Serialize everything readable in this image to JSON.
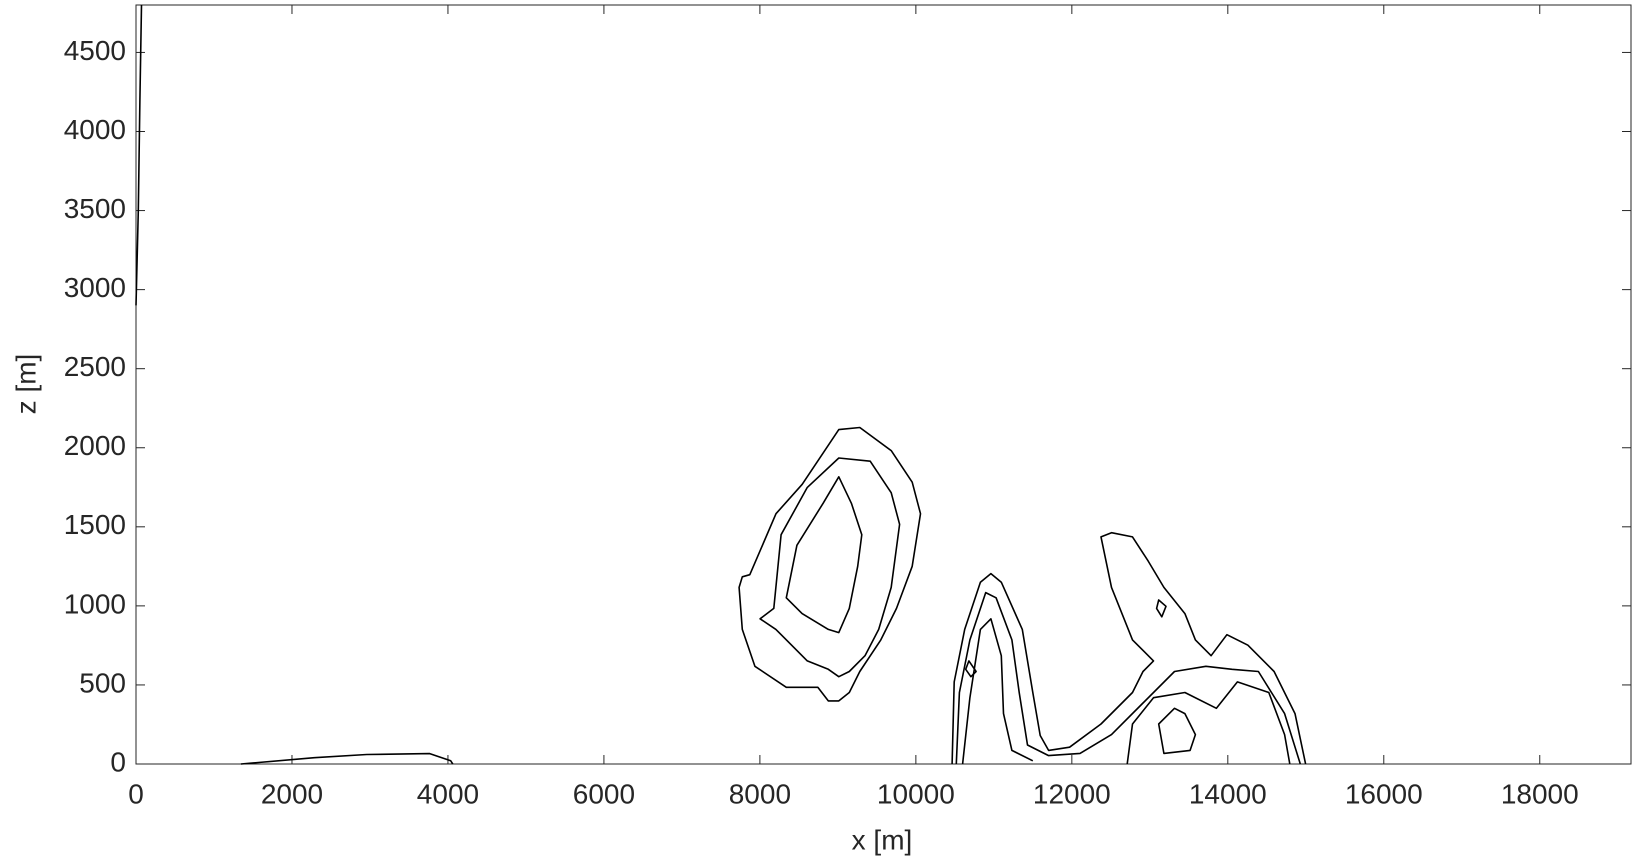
{
  "chart_data": {
    "type": "contour",
    "xlabel": "x [m]",
    "ylabel": "z [m]",
    "xlim": [
      0,
      19170
    ],
    "ylim": [
      0,
      4800
    ],
    "xticks": [
      0,
      2000,
      4000,
      6000,
      8000,
      10000,
      12000,
      14000,
      16000,
      18000
    ],
    "yticks": [
      0,
      500,
      1000,
      1500,
      2000,
      2500,
      3000,
      3500,
      4000,
      4500
    ],
    "grid": false,
    "color": "#000000",
    "series": [
      {
        "closed": true,
        "x": [
          7775,
          7870,
          8206,
          8543,
          9012,
          9281,
          9684,
          9953,
          10060,
          9953,
          9752,
          9550,
          9281,
          9146,
          9012,
          8877,
          8743,
          8339,
          7936,
          7775,
          7734
        ],
        "values": [
          1184,
          1197,
          1583,
          1769,
          2115,
          2128,
          1982,
          1782,
          1583,
          1250,
          984,
          785,
          585,
          452,
          399,
          399,
          485,
          485,
          618,
          851,
          1117
        ]
      },
      {
        "closed": true,
        "x": [
          8178,
          8272,
          8608,
          9012,
          9415,
          9684,
          9792,
          9684,
          9523,
          9348,
          9146,
          9012,
          8877,
          8608,
          8205,
          8003
        ],
        "values": [
          984,
          1450,
          1749,
          1935,
          1915,
          1716,
          1516,
          1117,
          851,
          685,
          585,
          552,
          599,
          652,
          851,
          918
        ]
      },
      {
        "closed": true,
        "x": [
          8339,
          8474,
          8810,
          9012,
          9173,
          9307,
          9254,
          9146,
          9012,
          8877,
          8541
        ],
        "values": [
          1051,
          1383,
          1649,
          1816,
          1649,
          1450,
          1250,
          984,
          831,
          851,
          951
        ]
      },
      {
        "closed": false,
        "x": [
          10464,
          10491,
          10626,
          10827,
          10962,
          11096,
          11365,
          11500,
          11594,
          11702,
          11971,
          12374,
          12778,
          12912,
          13047,
          12778,
          12509,
          12374,
          12509,
          12778,
          12979,
          13181,
          13450,
          13585,
          13786,
          13988,
          14257,
          14593,
          14862,
          14997
        ],
        "values": [
          0,
          519,
          851,
          1150,
          1204,
          1150,
          851,
          452,
          180,
          86,
          106,
          253,
          452,
          585,
          652,
          785,
          1117,
          1436,
          1463,
          1436,
          1283,
          1117,
          951,
          785,
          685,
          818,
          751,
          585,
          319,
          0
        ]
      },
      {
        "closed": false,
        "x": [
          10518,
          10558,
          10693,
          10895,
          11029,
          11231,
          11325,
          11432,
          11702,
          12105,
          12509,
          12912,
          13316,
          13719,
          14055,
          14392,
          14728,
          14930
        ],
        "values": [
          0,
          452,
          785,
          1084,
          1051,
          785,
          452,
          120,
          53,
          67,
          186,
          386,
          585,
          618,
          599,
          585,
          319,
          0
        ]
      },
      {
        "closed": false,
        "x": [
          10599,
          10693,
          10827,
          10962,
          11096,
          11124,
          11231,
          11500
        ],
        "values": [
          0,
          419,
          851,
          918,
          685,
          319,
          86,
          20
        ]
      },
      {
        "closed": false,
        "x": [
          12710,
          12778,
          13047,
          13450,
          13854,
          14123,
          14526,
          14728,
          14795
        ],
        "values": [
          0,
          253,
          419,
          452,
          352,
          519,
          452,
          186,
          0
        ]
      },
      {
        "closed": true,
        "x": [
          13114,
          13181,
          13517,
          13585,
          13450,
          13316
        ],
        "values": [
          253,
          67,
          86,
          186,
          319,
          352
        ]
      },
      {
        "closed": true,
        "x": [
          13114,
          13208,
          13154,
          13087
        ],
        "values": [
          1037,
          997,
          931,
          984
        ]
      },
      {
        "closed": true,
        "x": [
          10680,
          10773,
          10706,
          10639
        ],
        "values": [
          652,
          585,
          552,
          599
        ]
      },
      {
        "closed": false,
        "x": [
          1345,
          2286,
          2959,
          3766,
          4035,
          4062
        ],
        "values": [
          0,
          40,
          60,
          66,
          20,
          0
        ]
      },
      {
        "closed": false,
        "x": [
          0,
          30,
          50,
          70
        ],
        "values": [
          2900,
          3500,
          4200,
          4800
        ]
      }
    ]
  }
}
